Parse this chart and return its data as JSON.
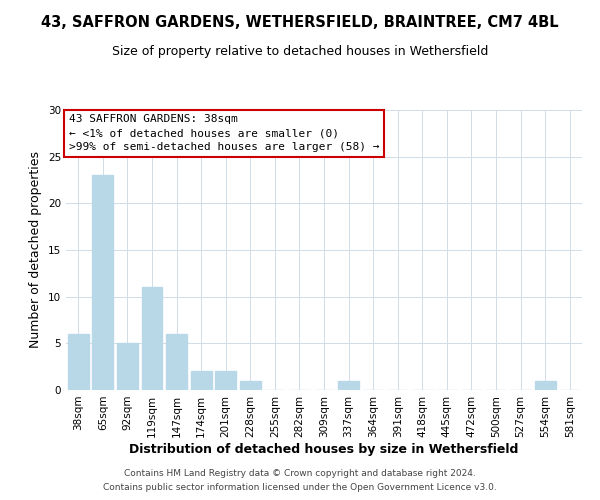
{
  "title_line1": "43, SAFFRON GARDENS, WETHERSFIELD, BRAINTREE, CM7 4BL",
  "title_line2": "Size of property relative to detached houses in Wethersfield",
  "xlabel": "Distribution of detached houses by size in Wethersfield",
  "ylabel": "Number of detached properties",
  "bar_labels": [
    "38sqm",
    "65sqm",
    "92sqm",
    "119sqm",
    "147sqm",
    "174sqm",
    "201sqm",
    "228sqm",
    "255sqm",
    "282sqm",
    "309sqm",
    "337sqm",
    "364sqm",
    "391sqm",
    "418sqm",
    "445sqm",
    "472sqm",
    "500sqm",
    "527sqm",
    "554sqm",
    "581sqm"
  ],
  "bar_values": [
    6,
    23,
    5,
    11,
    6,
    2,
    2,
    1,
    0,
    0,
    0,
    1,
    0,
    0,
    0,
    0,
    0,
    0,
    0,
    1,
    0
  ],
  "bar_color": "#b8d8e8",
  "annotation_line1": "43 SAFFRON GARDENS: 38sqm",
  "annotation_line2": "← <1% of detached houses are smaller (0)",
  "annotation_line3": ">99% of semi-detached houses are larger (58) →",
  "annotation_box_edge_color": "#cc0000",
  "annotation_box_face_color": "#ffffff",
  "ylim": [
    0,
    30
  ],
  "yticks": [
    0,
    5,
    10,
    15,
    20,
    25,
    30
  ],
  "footer_line1": "Contains HM Land Registry data © Crown copyright and database right 2024.",
  "footer_line2": "Contains public sector information licensed under the Open Government Licence v3.0.",
  "grid_color": "#d0dde8",
  "title1_fontsize": 10.5,
  "title2_fontsize": 9,
  "axis_label_fontsize": 9,
  "tick_fontsize": 7.5,
  "footer_fontsize": 6.5
}
